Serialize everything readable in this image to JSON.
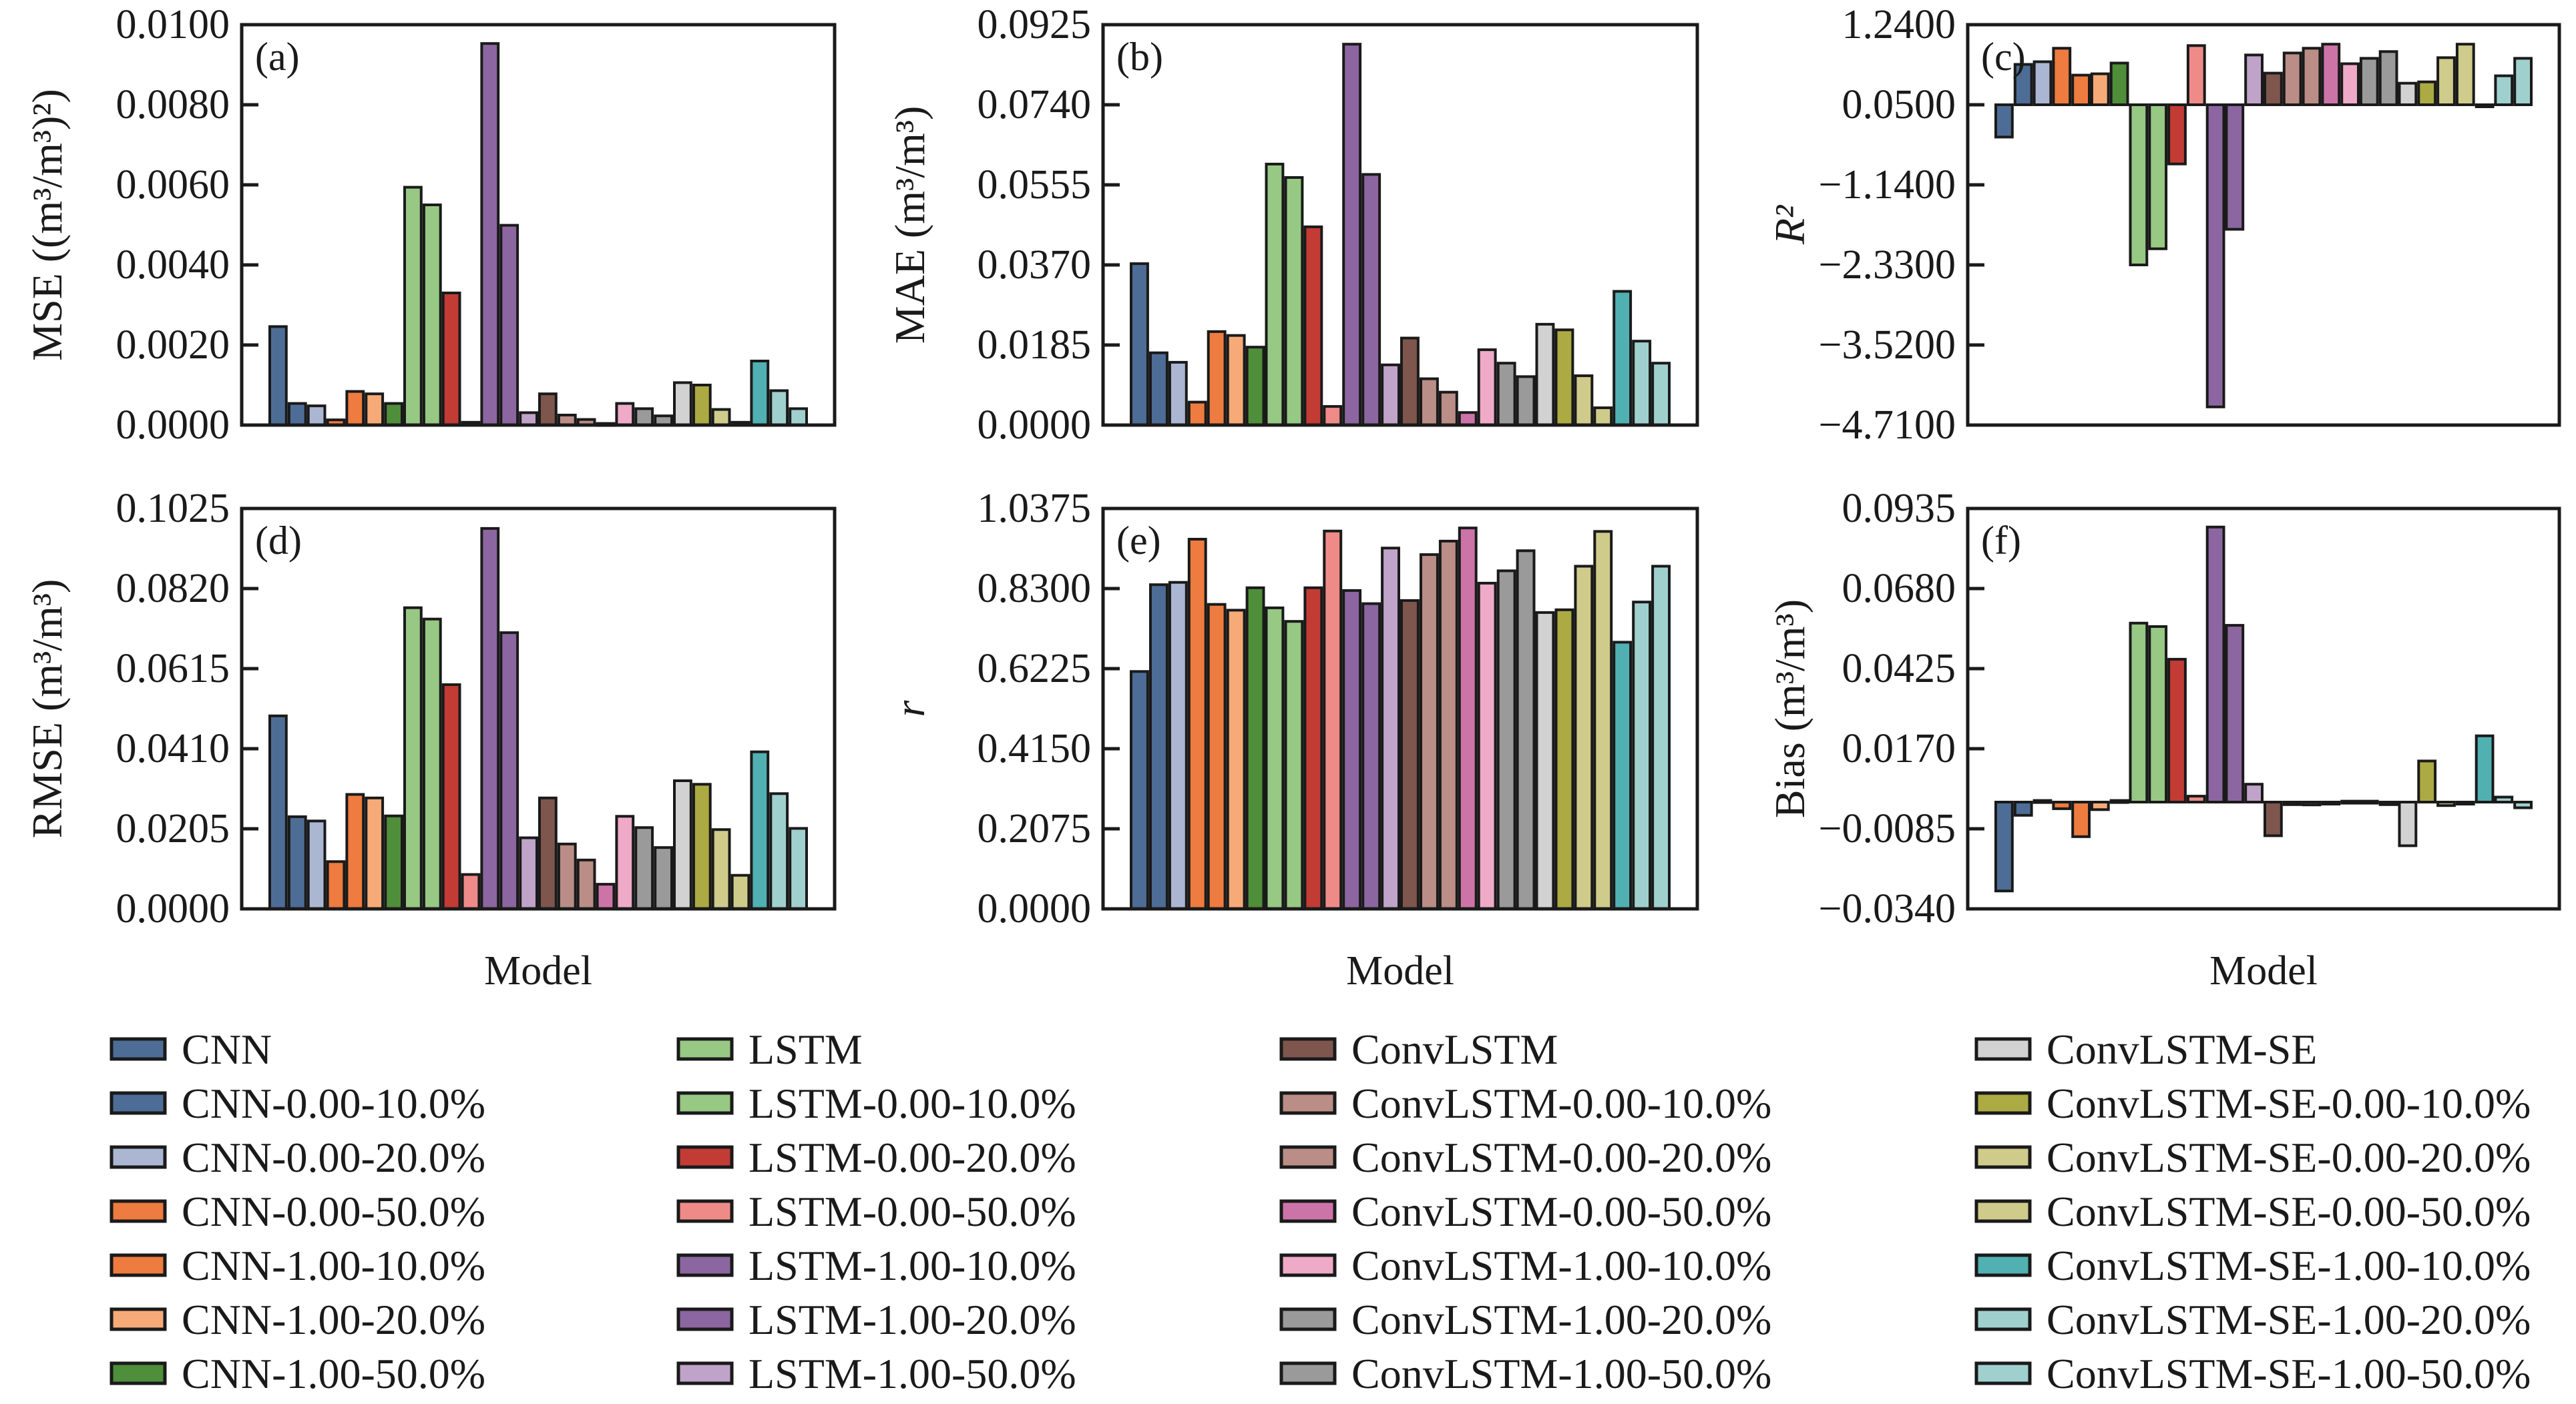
{
  "models": [
    "CNN",
    "CNN-0.00-10.0%",
    "CNN-0.00-20.0%",
    "CNN-0.00-50.0%",
    "CNN-1.00-10.0%",
    "CNN-1.00-20.0%",
    "CNN-1.00-50.0%",
    "LSTM",
    "LSTM-0.00-10.0%",
    "LSTM-0.00-20.0%",
    "LSTM-0.00-50.0%",
    "LSTM-1.00-10.0%",
    "LSTM-1.00-20.0%",
    "LSTM-1.00-50.0%",
    "ConvLSTM",
    "ConvLSTM-0.00-10.0%",
    "ConvLSTM-0.00-20.0%",
    "ConvLSTM-0.00-50.0%",
    "ConvLSTM-1.00-10.0%",
    "ConvLSTM-1.00-20.0%",
    "ConvLSTM-1.00-50.0%",
    "ConvLSTM-SE",
    "ConvLSTM-SE-0.00-10.0%",
    "ConvLSTM-SE-0.00-20.0%",
    "ConvLSTM-SE-0.00-50.0%",
    "ConvLSTM-SE-1.00-10.0%",
    "ConvLSTM-SE-1.00-20.0%",
    "ConvLSTM-SE-1.00-50.0%"
  ],
  "colors": [
    "#4e6d96",
    "#4e6d96",
    "#aab6d2",
    "#ee7b3f",
    "#ee7b3f",
    "#f6aa78",
    "#4f8e3a",
    "#97c884",
    "#97c884",
    "#c23b35",
    "#ee8b88",
    "#8c66a0",
    "#8c66a0",
    "#c0a3c8",
    "#7e564d",
    "#bb8d87",
    "#bb8d87",
    "#cc74a8",
    "#eeaac7",
    "#9a9a9a",
    "#9a9a9a",
    "#d2d2d2",
    "#acaa42",
    "#cfcb8b",
    "#cfcb8b",
    "#51b0b1",
    "#9fd0ce",
    "#9fd0ce"
  ],
  "chart_data": [
    {
      "type": "bar",
      "tag": "(a)",
      "title": "",
      "xlabel": "",
      "ylabel": "MSE ((m³/m³)²)",
      "ylim": [
        0.0,
        0.01
      ],
      "yticks": [
        "0.0000",
        "0.0020",
        "0.0040",
        "0.0060",
        "0.0080",
        "0.0100"
      ],
      "values": [
        0.00246,
        0.00054,
        0.00048,
        0.00013,
        0.00084,
        0.00078,
        0.00054,
        0.00594,
        0.0055,
        0.0033,
        7e-05,
        0.00953,
        0.00499,
        0.00031,
        0.00078,
        0.00025,
        0.00014,
        4e-05,
        0.00054,
        0.00041,
        0.00023,
        0.00106,
        0.001,
        0.00039,
        7e-05,
        0.0016,
        0.00086,
        0.00041
      ]
    },
    {
      "type": "bar",
      "tag": "(b)",
      "title": "",
      "xlabel": "",
      "ylabel": "MAE (m³/m³)",
      "ylim": [
        0.0,
        0.0925
      ],
      "yticks": [
        "0.0000",
        "0.0185",
        "0.0370",
        "0.0555",
        "0.0740",
        "0.0925"
      ],
      "values": [
        0.0373,
        0.0167,
        0.0145,
        0.0053,
        0.0216,
        0.0207,
        0.018,
        0.0603,
        0.0572,
        0.0458,
        0.0043,
        0.088,
        0.0579,
        0.0139,
        0.0201,
        0.0107,
        0.0076,
        0.0029,
        0.0174,
        0.0143,
        0.0112,
        0.0233,
        0.022,
        0.0114,
        0.004,
        0.0309,
        0.0194,
        0.0143
      ]
    },
    {
      "type": "bar",
      "tag": "(c)",
      "title": "",
      "xlabel": "",
      "ylabel": "R²",
      "ylabel_italic": true,
      "ylim": [
        -4.71,
        1.24
      ],
      "yticks": [
        "−4.7100",
        "−3.5200",
        "−2.3300",
        "−1.1400",
        "0.0500",
        "1.2400"
      ],
      "baseline": 0.05,
      "values": [
        -0.43,
        0.65,
        0.69,
        0.89,
        0.49,
        0.51,
        0.67,
        -2.33,
        -2.09,
        -0.83,
        0.93,
        -4.44,
        -1.8,
        0.79,
        0.52,
        0.82,
        0.89,
        0.95,
        0.66,
        0.74,
        0.84,
        0.37,
        0.39,
        0.75,
        0.95,
        0.03,
        0.48,
        0.74
      ]
    },
    {
      "type": "bar",
      "tag": "(d)",
      "title": "",
      "xlabel": "Model",
      "ylabel": "RMSE (m³/m³)",
      "ylim": [
        0.0,
        0.1025
      ],
      "yticks": [
        "0.0000",
        "0.0205",
        "0.0410",
        "0.0615",
        "0.0820",
        "0.1025"
      ],
      "values": [
        0.0494,
        0.0236,
        0.0225,
        0.0121,
        0.0293,
        0.0284,
        0.0238,
        0.0771,
        0.0742,
        0.0574,
        0.0088,
        0.0974,
        0.0707,
        0.0182,
        0.0284,
        0.0166,
        0.0125,
        0.0063,
        0.0237,
        0.0208,
        0.0157,
        0.0328,
        0.0319,
        0.0203,
        0.0086,
        0.0402,
        0.0295,
        0.0206
      ]
    },
    {
      "type": "bar",
      "tag": "(e)",
      "title": "",
      "xlabel": "Model",
      "ylabel": "r",
      "ylabel_italic": true,
      "ylim": [
        0.0,
        1.0375
      ],
      "yticks": [
        "0.0000",
        "0.2075",
        "0.4150",
        "0.6225",
        "0.8300",
        "1.0375"
      ],
      "values": [
        0.615,
        0.84,
        0.846,
        0.958,
        0.789,
        0.774,
        0.832,
        0.78,
        0.745,
        0.832,
        0.979,
        0.825,
        0.791,
        0.935,
        0.799,
        0.918,
        0.953,
        0.987,
        0.844,
        0.876,
        0.928,
        0.768,
        0.775,
        0.888,
        0.978,
        0.691,
        0.795,
        0.888
      ]
    },
    {
      "type": "bar",
      "tag": "(f)",
      "title": "",
      "xlabel": "Model",
      "ylabel": "Bias (m³/m³)",
      "ylim": [
        -0.034,
        0.0935
      ],
      "yticks": [
        "−0.0340",
        "−0.0085",
        "0.0170",
        "0.0425",
        "0.0680",
        "0.0935"
      ],
      "baseline": 0.0,
      "values": [
        -0.0283,
        -0.0042,
        0.0005,
        -0.0021,
        -0.011,
        -0.0024,
        0.0005,
        0.057,
        0.0559,
        0.0455,
        0.0019,
        0.0876,
        0.0563,
        0.0057,
        -0.0107,
        -0.0008,
        -0.0009,
        -0.0003,
        0.0003,
        0.0003,
        -0.0008,
        -0.0139,
        0.0131,
        -0.0011,
        -0.0005,
        0.0211,
        0.0016,
        -0.0018
      ]
    }
  ],
  "legend": {
    "placement": "bottom",
    "columns": 4
  }
}
